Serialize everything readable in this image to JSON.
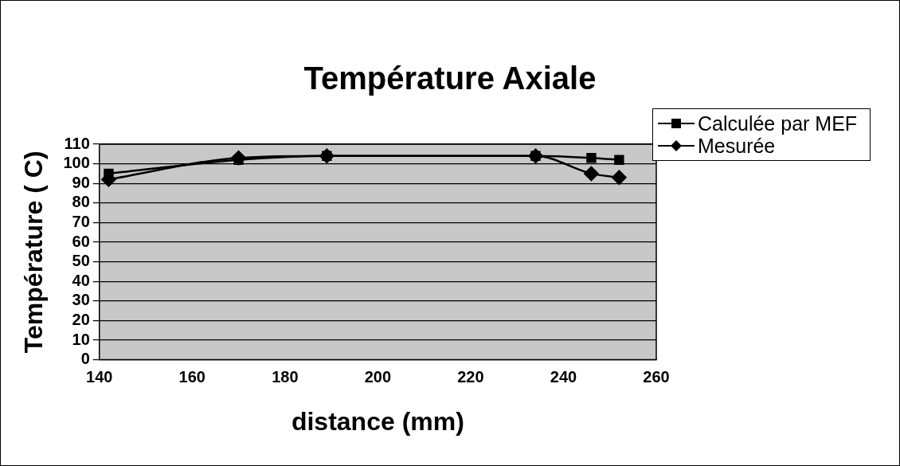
{
  "chart_data": {
    "type": "line",
    "title": "Température Axiale",
    "xlabel": "distance (mm)",
    "ylabel": "Température ( C)",
    "x": [
      142,
      170,
      189,
      234,
      246,
      252
    ],
    "series": [
      {
        "name": "Calculée par MEF",
        "color": "#000000",
        "marker": "square",
        "values": [
          95,
          102,
          104,
          104,
          103,
          102
        ]
      },
      {
        "name": "Mesurée",
        "color": "#000000",
        "marker": "diamond",
        "values": [
          92,
          103,
          104,
          104,
          95,
          93
        ]
      }
    ],
    "xlim": [
      140,
      260
    ],
    "xticks": [
      140,
      160,
      180,
      200,
      220,
      240,
      260
    ],
    "ylim": [
      0,
      110
    ],
    "yticks": [
      0,
      10,
      20,
      30,
      40,
      50,
      60,
      70,
      80,
      90,
      100,
      110
    ],
    "grid": "y",
    "legend": "top right"
  }
}
